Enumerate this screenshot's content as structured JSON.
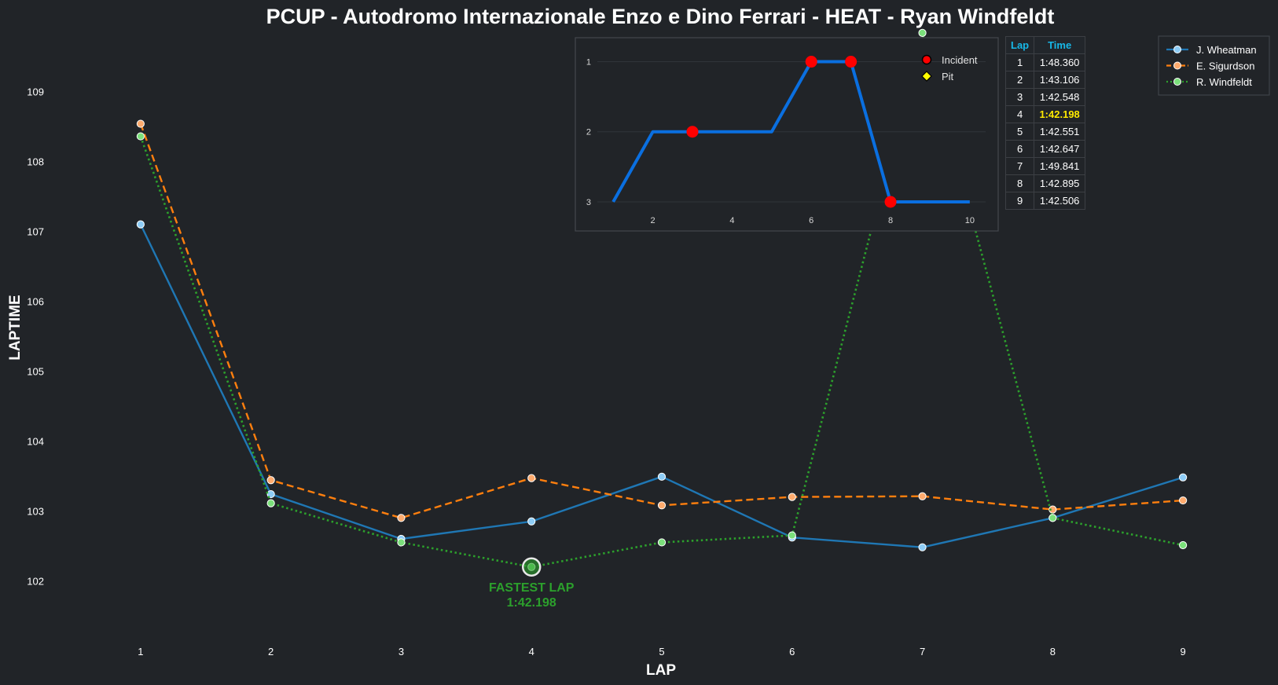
{
  "colors": {
    "background": "#212428",
    "wheatman": "#1f77b4",
    "sigurdson": "#ff7f0e",
    "windfeldt": "#2ca02c",
    "position_line": "#0a6fe0",
    "incident": "#ff0000",
    "pit": "#ffff00",
    "table_header": "#17b8e8",
    "best_time": "#ffea00"
  },
  "chart_data": [
    {
      "type": "line",
      "title": "PCUP - Autodromo Internazionale Enzo e Dino Ferrari - HEAT - Ryan Windfeldt",
      "xlabel": "LAP",
      "ylabel": "LAPTIME",
      "x": [
        1,
        2,
        3,
        4,
        5,
        6,
        7,
        8,
        9
      ],
      "xlim": [
        0.5,
        9.5
      ],
      "ylim": [
        101.15,
        109.85
      ],
      "yticks": [
        102,
        103,
        104,
        105,
        106,
        107,
        108,
        109
      ],
      "grid": false,
      "legend_position": "top-right",
      "series": [
        {
          "name": "J. Wheatman",
          "style": "solid",
          "values": [
            107.1,
            103.24,
            102.6,
            102.85,
            103.49,
            102.62,
            102.48,
            102.9,
            103.48
          ]
        },
        {
          "name": "E. Sigurdson",
          "style": "dashed",
          "values": [
            108.54,
            103.44,
            102.9,
            103.47,
            103.08,
            103.2,
            103.21,
            103.02,
            103.15
          ]
        },
        {
          "name": "R. Windfeldt",
          "style": "dotted",
          "values": [
            108.36,
            103.11,
            102.55,
            102.198,
            102.55,
            102.65,
            109.84,
            102.9,
            102.51
          ]
        }
      ],
      "annotations": [
        {
          "text_line1": "FASTEST LAP",
          "text_line2": "1:42.198",
          "x": 4,
          "y": 102.198
        }
      ]
    },
    {
      "type": "line",
      "title": "",
      "x": [
        1,
        2,
        3,
        4,
        5,
        6,
        7,
        8,
        9,
        10
      ],
      "values": [
        3,
        2,
        2,
        2,
        2,
        1,
        1,
        3,
        3,
        3
      ],
      "xticks": [
        2,
        4,
        6,
        8,
        10
      ],
      "yticks": [
        1,
        2,
        3
      ],
      "xlim": [
        0.6,
        10.4
      ],
      "ylim": [
        3.18,
        0.77
      ],
      "y_inverted": true,
      "legend_position": "top-right",
      "markers": [
        {
          "kind": "incident",
          "x": 3,
          "y": 2
        },
        {
          "kind": "incident",
          "x": 6,
          "y": 1
        },
        {
          "kind": "incident",
          "x": 7,
          "y": 1
        },
        {
          "kind": "incident",
          "x": 8,
          "y": 3
        }
      ],
      "legend": [
        {
          "kind": "incident",
          "label": "Incident"
        },
        {
          "kind": "pit",
          "label": "Pit"
        }
      ]
    }
  ],
  "lap_table": {
    "headers": [
      "Lap",
      "Time"
    ],
    "best_index": 3,
    "rows": [
      {
        "lap": "1",
        "time": "1:48.360"
      },
      {
        "lap": "2",
        "time": "1:43.106"
      },
      {
        "lap": "3",
        "time": "1:42.548"
      },
      {
        "lap": "4",
        "time": "1:42.198"
      },
      {
        "lap": "5",
        "time": "1:42.551"
      },
      {
        "lap": "6",
        "time": "1:42.647"
      },
      {
        "lap": "7",
        "time": "1:49.841"
      },
      {
        "lap": "8",
        "time": "1:42.895"
      },
      {
        "lap": "9",
        "time": "1:42.506"
      }
    ]
  }
}
